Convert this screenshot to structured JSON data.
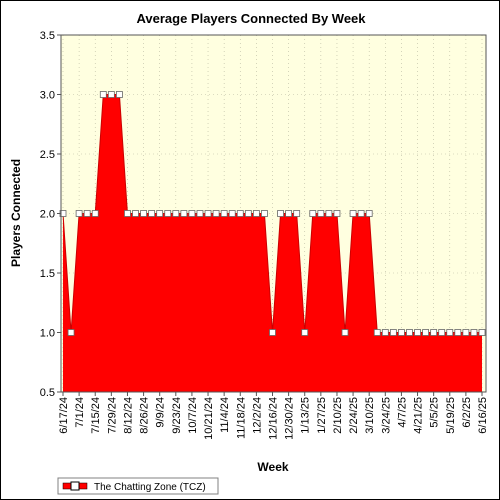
{
  "chart_data": {
    "type": "area",
    "title": "Average Players Connected By Week",
    "xlabel": "Week",
    "ylabel": "Players Connected",
    "ylim": [
      0.5,
      3.5
    ],
    "yticks": [
      "0.5",
      "1.0",
      "1.5",
      "2.0",
      "2.5",
      "3.0",
      "3.5"
    ],
    "x_tick_labels": [
      "6/17/24",
      "7/1/24",
      "7/15/24",
      "7/29/24",
      "8/12/24",
      "8/26/24",
      "9/9/24",
      "9/23/24",
      "10/7/24",
      "10/21/24",
      "11/4/24",
      "11/18/24",
      "12/2/24",
      "12/16/24",
      "12/30/24",
      "1/13/25",
      "1/27/25",
      "2/10/25",
      "2/24/25",
      "3/10/25",
      "3/24/25",
      "4/7/25",
      "4/21/25",
      "5/5/25",
      "5/19/25",
      "6/2/25",
      "6/16/25"
    ],
    "grid": true,
    "legend_position": "bottom-left",
    "background_color": "#ffffe0",
    "series_color": "#ff0000",
    "series": [
      {
        "name": "The Chatting Zone (TCZ)",
        "values": [
          2,
          1,
          2,
          2,
          2,
          3,
          3,
          3,
          2,
          2,
          2,
          2,
          2,
          2,
          2,
          2,
          2,
          2,
          2,
          2,
          2,
          2,
          2,
          2,
          2,
          2,
          1,
          2,
          2,
          2,
          1,
          2,
          2,
          2,
          2,
          1,
          2,
          2,
          2,
          1,
          1,
          1,
          1,
          1,
          1,
          1,
          1,
          1,
          1,
          1,
          1,
          1,
          1
        ]
      }
    ]
  }
}
